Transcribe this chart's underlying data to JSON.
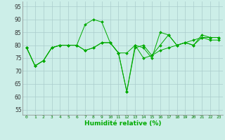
{
  "xlabel": "Humidité relative (%)",
  "bg_color": "#cceee8",
  "grid_color": "#aacccc",
  "line_color": "#00aa00",
  "xlim": [
    -0.5,
    23.5
  ],
  "ylim": [
    53,
    97
  ],
  "yticks": [
    55,
    60,
    65,
    70,
    75,
    80,
    85,
    90,
    95
  ],
  "xticks": [
    0,
    1,
    2,
    3,
    4,
    5,
    6,
    7,
    8,
    9,
    10,
    11,
    12,
    13,
    14,
    15,
    16,
    17,
    18,
    19,
    20,
    21,
    22,
    23
  ],
  "series": [
    [
      79,
      72,
      74,
      79,
      80,
      80,
      80,
      88,
      90,
      89,
      81,
      77,
      77,
      80,
      79,
      75,
      85,
      84,
      80,
      81,
      80,
      84,
      83,
      83
    ],
    [
      79,
      72,
      74,
      79,
      80,
      80,
      80,
      78,
      79,
      81,
      81,
      77,
      62,
      80,
      75,
      76,
      80,
      84,
      80,
      81,
      82,
      83,
      83,
      83
    ],
    [
      79,
      72,
      74,
      79,
      80,
      80,
      80,
      78,
      79,
      81,
      81,
      77,
      62,
      79,
      80,
      76,
      78,
      79,
      80,
      81,
      80,
      83,
      82,
      82
    ]
  ]
}
